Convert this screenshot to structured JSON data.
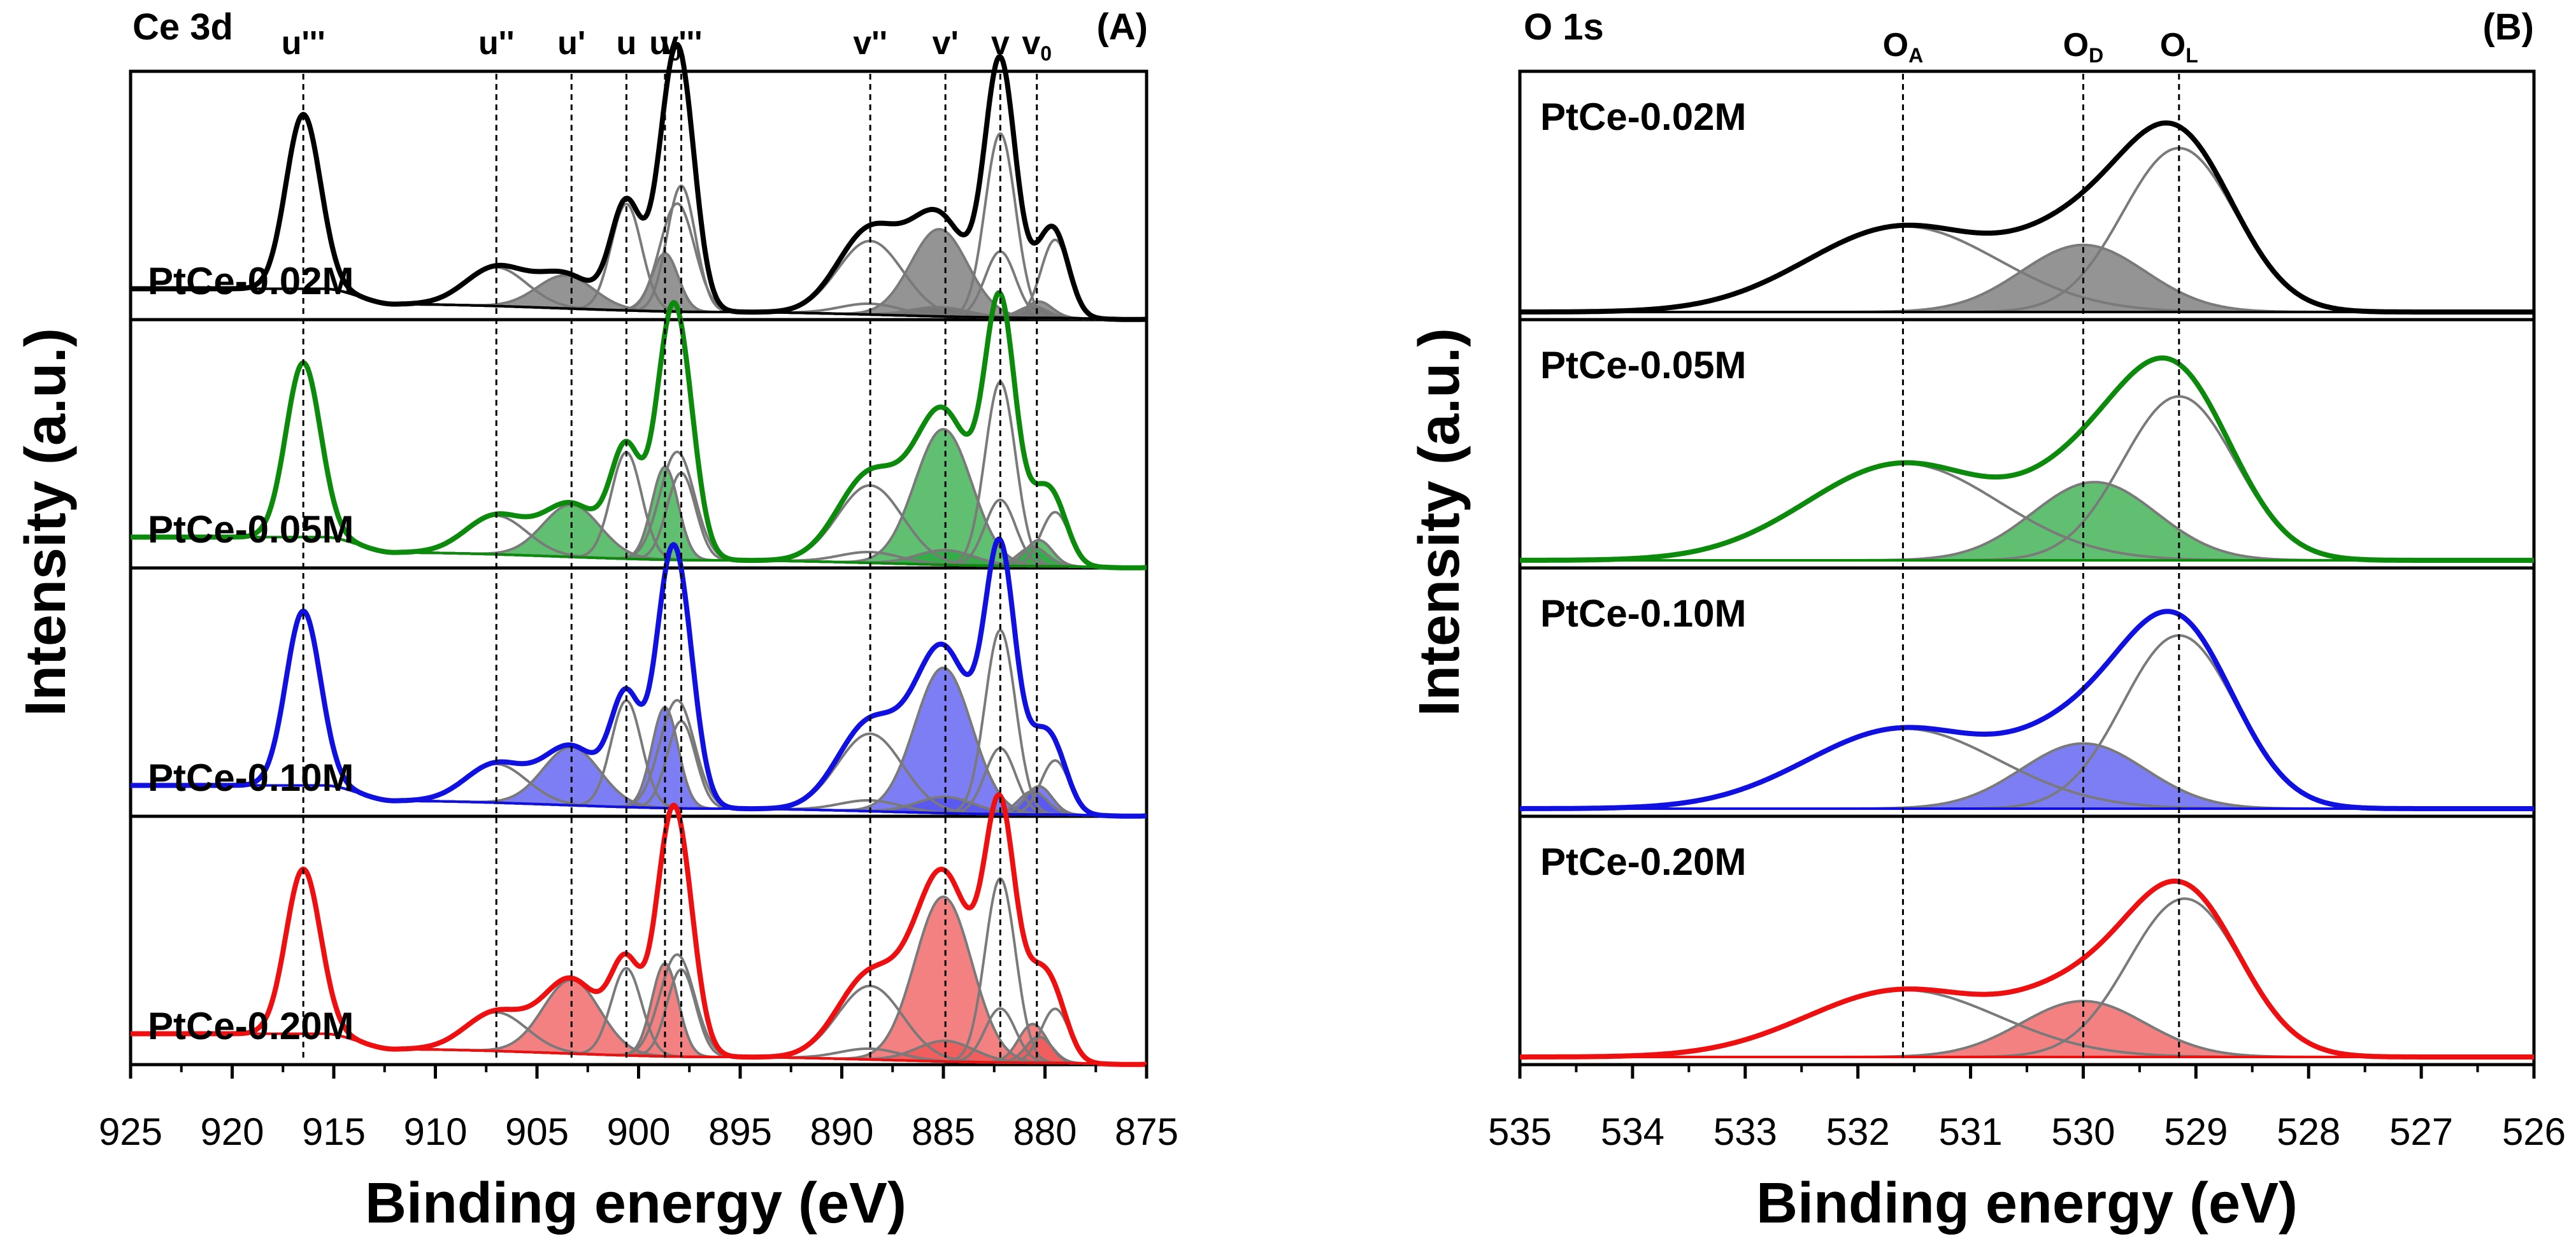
{
  "figure": {
    "ylabel": "Intensity (a.u.)",
    "xlabel": "Binding energy (eV)"
  },
  "chart_data": [
    {
      "id": "A",
      "type": "line",
      "title": "Ce 3d",
      "panel_label": "(A)",
      "xlabel": "Binding energy (eV)",
      "ylabel": "Intensity (a.u.)",
      "xlim": [
        925,
        875
      ],
      "xticks": [
        925,
        920,
        915,
        910,
        905,
        900,
        895,
        890,
        885,
        880,
        875
      ],
      "reference_lines": [
        {
          "label": "u'''",
          "x": 916.5
        },
        {
          "label": "u''",
          "x": 907.0
        },
        {
          "label": "u'",
          "x": 903.3
        },
        {
          "label": "u",
          "x": 900.6
        },
        {
          "label": "u",
          "sub": "0",
          "x": 898.7
        },
        {
          "label": "v'''",
          "x": 897.9
        },
        {
          "label": "v''",
          "x": 888.6
        },
        {
          "label": "v'",
          "x": 884.9
        },
        {
          "label": "v",
          "x": 882.2
        },
        {
          "label": "v",
          "sub": "0",
          "x": 880.4
        }
      ],
      "series": [
        {
          "name": "PtCe-0.02M",
          "color": "#000000",
          "fill": "#6b6b6b",
          "baseline": [
            [
              925,
              0.12
            ],
            [
              915.5,
              0.12
            ],
            [
              912,
              0.04
            ],
            [
              896,
              0.0
            ],
            [
              880,
              -0.03
            ],
            [
              875,
              -0.04
            ]
          ],
          "peaks": [
            {
              "label": "u'''",
              "x": 916.5,
              "h": 0.9,
              "w": 0.85,
              "doublet": "iv"
            },
            {
              "label": "u''",
              "x": 907.0,
              "h": 0.2,
              "w": 1.5,
              "doublet": "iii"
            },
            {
              "label": "u'",
              "x": 903.6,
              "h": 0.17,
              "w": 1.4,
              "doublet": "iii",
              "shaded": true
            },
            {
              "label": "u",
              "x": 900.6,
              "h": 0.55,
              "w": 0.75,
              "doublet": "iv"
            },
            {
              "label": "u0",
              "x": 898.7,
              "h": 0.3,
              "w": 0.65,
              "doublet": "iii",
              "shaded": true
            },
            {
              "label": "v'''",
              "x": 897.9,
              "h": 0.65,
              "w": 0.7,
              "doublet": "iv"
            },
            {
              "label": "v''",
              "x": 888.6,
              "h": 0.38,
              "w": 1.6,
              "doublet": "iv"
            },
            {
              "label": "v'",
              "x": 885.2,
              "h": 0.45,
              "w": 1.4,
              "doublet": "iii",
              "shaded": true
            },
            {
              "label": "v",
              "x": 882.2,
              "h": 0.95,
              "w": 0.75,
              "doublet": "iv"
            },
            {
              "label": "v0",
              "x": 880.6,
              "h": 0.06,
              "w": 0.7,
              "doublet": "iii",
              "shaded": true
            }
          ]
        },
        {
          "name": "PtCe-0.05M",
          "color": "#0b8a0b",
          "fill": "#22a63a",
          "baseline": [
            [
              925,
              0.12
            ],
            [
              915.5,
              0.12
            ],
            [
              912,
              0.04
            ],
            [
              896,
              0.0
            ],
            [
              880,
              -0.03
            ],
            [
              875,
              -0.04
            ]
          ],
          "peaks": [
            {
              "label": "u'''",
              "x": 916.5,
              "h": 0.9,
              "w": 0.85,
              "doublet": "iv"
            },
            {
              "label": "u''",
              "x": 907.0,
              "h": 0.2,
              "w": 1.5,
              "doublet": "iii"
            },
            {
              "label": "u'",
              "x": 903.3,
              "h": 0.27,
              "w": 1.4,
              "doublet": "iii",
              "shaded": true
            },
            {
              "label": "u",
              "x": 900.6,
              "h": 0.55,
              "w": 0.75,
              "doublet": "iv"
            },
            {
              "label": "u0",
              "x": 898.7,
              "h": 0.48,
              "w": 0.65,
              "doublet": "iii",
              "shaded": true
            },
            {
              "label": "v'''",
              "x": 897.9,
              "h": 0.45,
              "w": 0.7,
              "doublet": "iv"
            },
            {
              "label": "v''",
              "x": 888.6,
              "h": 0.4,
              "w": 1.6,
              "doublet": "iv"
            },
            {
              "label": "v'",
              "x": 885.0,
              "h": 0.7,
              "w": 1.4,
              "doublet": "iii",
              "shaded": true
            },
            {
              "label": "v",
              "x": 882.2,
              "h": 0.95,
              "w": 0.75,
              "doublet": "iv"
            },
            {
              "label": "v0",
              "x": 880.6,
              "h": 0.1,
              "w": 0.7,
              "doublet": "iii",
              "shaded": true
            }
          ]
        },
        {
          "name": "PtCe-0.10M",
          "color": "#1010e0",
          "fill": "#4c4cf0",
          "baseline": [
            [
              925,
              0.12
            ],
            [
              915.5,
              0.12
            ],
            [
              912,
              0.04
            ],
            [
              896,
              0.0
            ],
            [
              880,
              -0.03
            ],
            [
              875,
              -0.04
            ]
          ],
          "peaks": [
            {
              "label": "u'''",
              "x": 916.5,
              "h": 0.9,
              "w": 0.85,
              "doublet": "iv"
            },
            {
              "label": "u''",
              "x": 907.0,
              "h": 0.2,
              "w": 1.5,
              "doublet": "iii"
            },
            {
              "label": "u'",
              "x": 903.3,
              "h": 0.3,
              "w": 1.4,
              "doublet": "iii",
              "shaded": true
            },
            {
              "label": "u",
              "x": 900.6,
              "h": 0.55,
              "w": 0.75,
              "doublet": "iv"
            },
            {
              "label": "u0",
              "x": 898.7,
              "h": 0.52,
              "w": 0.65,
              "doublet": "iii",
              "shaded": true
            },
            {
              "label": "v'''",
              "x": 897.9,
              "h": 0.45,
              "w": 0.7,
              "doublet": "iv"
            },
            {
              "label": "v''",
              "x": 888.6,
              "h": 0.4,
              "w": 1.6,
              "doublet": "iv"
            },
            {
              "label": "v'",
              "x": 885.0,
              "h": 0.75,
              "w": 1.4,
              "doublet": "iii",
              "shaded": true
            },
            {
              "label": "v",
              "x": 882.2,
              "h": 0.95,
              "w": 0.75,
              "doublet": "iv"
            },
            {
              "label": "v0",
              "x": 880.6,
              "h": 0.12,
              "w": 0.7,
              "doublet": "iii",
              "shaded": true
            }
          ]
        },
        {
          "name": "PtCe-0.20M",
          "color": "#ee1010",
          "fill": "#f05050",
          "baseline": [
            [
              925,
              0.12
            ],
            [
              915.5,
              0.12
            ],
            [
              912,
              0.04
            ],
            [
              896,
              0.0
            ],
            [
              880,
              -0.03
            ],
            [
              875,
              -0.04
            ]
          ],
          "peaks": [
            {
              "label": "u'''",
              "x": 916.5,
              "h": 0.85,
              "w": 0.85,
              "doublet": "iv"
            },
            {
              "label": "u''",
              "x": 907.0,
              "h": 0.2,
              "w": 1.5,
              "doublet": "iii"
            },
            {
              "label": "u'",
              "x": 903.3,
              "h": 0.38,
              "w": 1.4,
              "doublet": "iii",
              "shaded": true
            },
            {
              "label": "u",
              "x": 900.6,
              "h": 0.45,
              "w": 0.75,
              "doublet": "iv"
            },
            {
              "label": "u0",
              "x": 898.7,
              "h": 0.48,
              "w": 0.65,
              "doublet": "iii",
              "shaded": true
            },
            {
              "label": "v'''",
              "x": 897.9,
              "h": 0.45,
              "w": 0.7,
              "doublet": "iv"
            },
            {
              "label": "v''",
              "x": 888.6,
              "h": 0.38,
              "w": 1.6,
              "doublet": "iv"
            },
            {
              "label": "v'",
              "x": 885.0,
              "h": 0.85,
              "w": 1.4,
              "doublet": "iii",
              "shaded": true
            },
            {
              "label": "v",
              "x": 882.2,
              "h": 0.95,
              "w": 0.75,
              "doublet": "iv"
            },
            {
              "label": "v0",
              "x": 880.6,
              "h": 0.2,
              "w": 0.7,
              "doublet": "iii",
              "shaded": true
            }
          ]
        }
      ]
    },
    {
      "id": "B",
      "type": "line",
      "title": "O 1s",
      "panel_label": "(B)",
      "xlabel": "Binding energy (eV)",
      "ylabel": "Intensity (a.u.)",
      "xlim": [
        535,
        526
      ],
      "xticks": [
        535,
        534,
        533,
        532,
        531,
        530,
        529,
        528,
        527,
        526
      ],
      "reference_lines": [
        {
          "label": "O",
          "sub": "A",
          "x": 531.6
        },
        {
          "label": "O",
          "sub": "D",
          "x": 530.0
        },
        {
          "label": "O",
          "sub": "L",
          "x": 529.15
        }
      ],
      "series": [
        {
          "name": "PtCe-0.02M",
          "color": "#000000",
          "fill": "#6b6b6b",
          "baseline": [
            [
              535,
              0.0
            ],
            [
              526,
              0.0
            ]
          ],
          "peaks": [
            {
              "label": "OA",
              "x": 531.6,
              "h": 0.46,
              "w": 0.85,
              "doublet": "none"
            },
            {
              "label": "OD",
              "x": 530.0,
              "h": 0.36,
              "w": 0.55,
              "doublet": "none",
              "shaded": true
            },
            {
              "label": "OL",
              "x": 529.15,
              "h": 0.88,
              "w": 0.5,
              "doublet": "none"
            }
          ]
        },
        {
          "name": "PtCe-0.05M",
          "color": "#0b8a0b",
          "fill": "#22a63a",
          "baseline": [
            [
              535,
              0.0
            ],
            [
              526,
              0.0
            ]
          ],
          "peaks": [
            {
              "label": "OA",
              "x": 531.6,
              "h": 0.52,
              "w": 0.85,
              "doublet": "none"
            },
            {
              "label": "OD",
              "x": 529.9,
              "h": 0.42,
              "w": 0.55,
              "doublet": "none",
              "shaded": true
            },
            {
              "label": "OL",
              "x": 529.15,
              "h": 0.88,
              "w": 0.5,
              "doublet": "none"
            }
          ]
        },
        {
          "name": "PtCe-0.10M",
          "color": "#1010e0",
          "fill": "#4c4cf0",
          "baseline": [
            [
              535,
              0.0
            ],
            [
              526,
              0.0
            ]
          ],
          "peaks": [
            {
              "label": "OA",
              "x": 531.6,
              "h": 0.43,
              "w": 0.85,
              "doublet": "none"
            },
            {
              "label": "OD",
              "x": 530.0,
              "h": 0.35,
              "w": 0.55,
              "doublet": "none",
              "shaded": true
            },
            {
              "label": "OL",
              "x": 529.15,
              "h": 0.93,
              "w": 0.5,
              "doublet": "none"
            }
          ]
        },
        {
          "name": "PtCe-0.20M",
          "color": "#ee1010",
          "fill": "#f05050",
          "baseline": [
            [
              535,
              0.0
            ],
            [
              526,
              0.0
            ]
          ],
          "peaks": [
            {
              "label": "OA",
              "x": 531.6,
              "h": 0.36,
              "w": 0.85,
              "doublet": "none"
            },
            {
              "label": "OD",
              "x": 530.0,
              "h": 0.3,
              "w": 0.55,
              "doublet": "none",
              "shaded": true
            },
            {
              "label": "OL",
              "x": 529.1,
              "h": 0.85,
              "w": 0.5,
              "doublet": "none"
            }
          ]
        }
      ]
    }
  ]
}
